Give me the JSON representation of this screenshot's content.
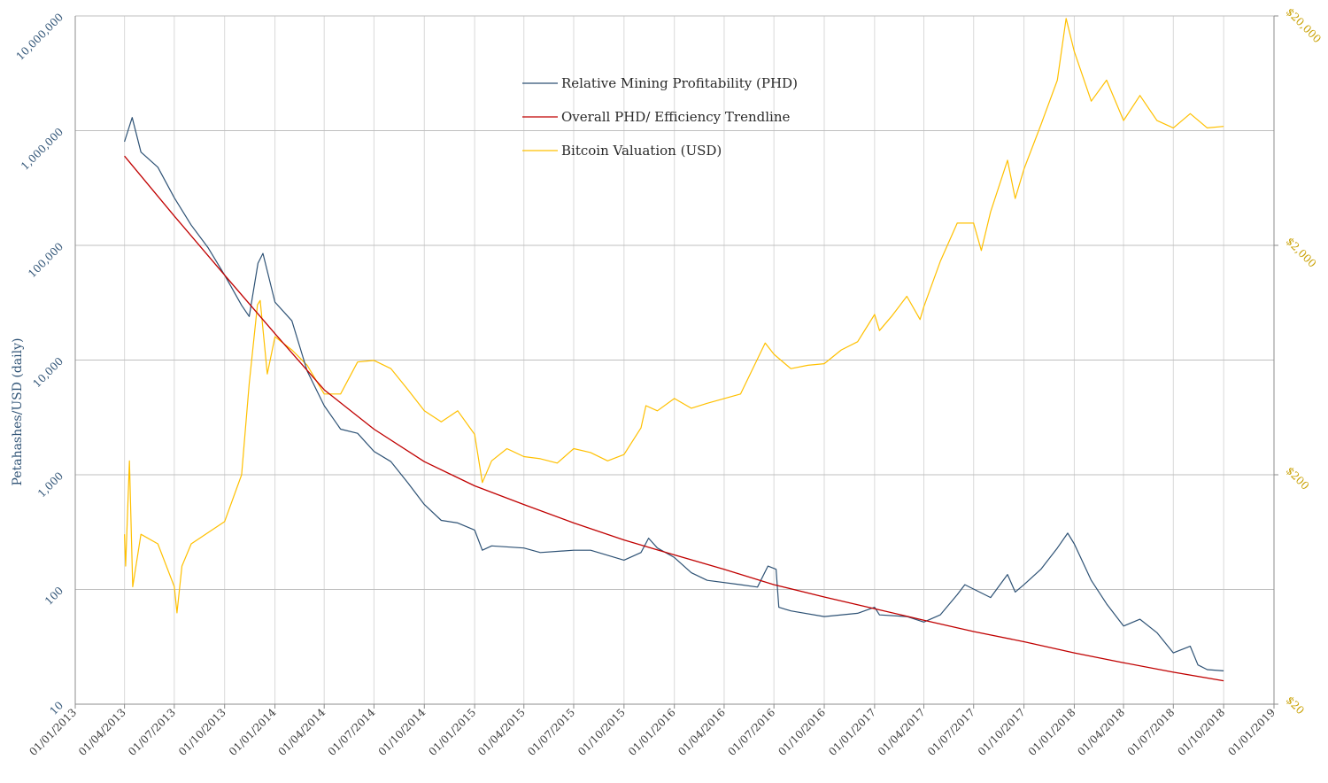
{
  "chart_data": {
    "type": "line",
    "ylabel": "Petahashes/USD (daily)",
    "x_range": [
      "01/01/2013",
      "01/01/2019"
    ],
    "x_ticks": [
      "01/01/2013",
      "01/04/2013",
      "01/07/2013",
      "01/10/2013",
      "01/01/2014",
      "01/04/2014",
      "01/07/2014",
      "01/10/2014",
      "01/01/2015",
      "01/04/2015",
      "01/07/2015",
      "01/10/2015",
      "01/01/2016",
      "01/04/2016",
      "01/07/2016",
      "01/10/2016",
      "01/01/2017",
      "01/04/2017",
      "01/07/2017",
      "01/10/2017",
      "01/01/2018",
      "01/04/2018",
      "01/07/2018",
      "01/10/2018",
      "01/01/2019"
    ],
    "y_left": {
      "scale": "log",
      "range": [
        10,
        10000000
      ],
      "ticks": [
        "10",
        "100",
        "1,000",
        "10,000",
        "100,000",
        "1,000,000",
        "10,000,000"
      ]
    },
    "y_right": {
      "scale": "log",
      "range": [
        20,
        20000
      ],
      "ticks": [
        "$20",
        "$200",
        "$2,000",
        "$20,000"
      ]
    },
    "grid": {
      "horizontal": true,
      "vertical": true
    },
    "legend_position": "top-center",
    "series": [
      {
        "name": "Relative Mining Profitability (PHD)",
        "axis": "left",
        "color": "#2e5275",
        "points": [
          [
            "01/04/2013",
            800000
          ],
          [
            "15/04/2013",
            1300000
          ],
          [
            "01/05/2013",
            650000
          ],
          [
            "01/06/2013",
            480000
          ],
          [
            "01/07/2013",
            260000
          ],
          [
            "01/08/2013",
            150000
          ],
          [
            "01/09/2013",
            95000
          ],
          [
            "01/10/2013",
            55000
          ],
          [
            "01/11/2013",
            30000
          ],
          [
            "15/11/2013",
            24000
          ],
          [
            "01/12/2013",
            70000
          ],
          [
            "10/12/2013",
            85000
          ],
          [
            "01/01/2014",
            32000
          ],
          [
            "01/02/2014",
            22000
          ],
          [
            "01/03/2014",
            8000
          ],
          [
            "01/04/2014",
            4000
          ],
          [
            "01/05/2014",
            2500
          ],
          [
            "01/06/2014",
            2300
          ],
          [
            "01/07/2014",
            1600
          ],
          [
            "01/08/2014",
            1300
          ],
          [
            "01/09/2014",
            850
          ],
          [
            "01/10/2014",
            550
          ],
          [
            "01/11/2014",
            400
          ],
          [
            "01/12/2014",
            380
          ],
          [
            "01/01/2015",
            330
          ],
          [
            "15/01/2015",
            220
          ],
          [
            "01/02/2015",
            240
          ],
          [
            "01/04/2015",
            230
          ],
          [
            "01/05/2015",
            210
          ],
          [
            "01/07/2015",
            220
          ],
          [
            "01/08/2015",
            220
          ],
          [
            "01/10/2015",
            180
          ],
          [
            "01/11/2015",
            210
          ],
          [
            "15/11/2015",
            280
          ],
          [
            "01/12/2015",
            230
          ],
          [
            "01/01/2016",
            190
          ],
          [
            "01/02/2016",
            140
          ],
          [
            "01/03/2016",
            120
          ],
          [
            "01/05/2016",
            110
          ],
          [
            "01/06/2016",
            105
          ],
          [
            "20/06/2016",
            160
          ],
          [
            "05/07/2016",
            150
          ],
          [
            "10/07/2016",
            70
          ],
          [
            "01/08/2016",
            65
          ],
          [
            "01/10/2016",
            58
          ],
          [
            "01/12/2016",
            62
          ],
          [
            "01/01/2017",
            70
          ],
          [
            "10/01/2017",
            60
          ],
          [
            "01/03/2017",
            58
          ],
          [
            "01/04/2017",
            52
          ],
          [
            "01/05/2017",
            60
          ],
          [
            "01/06/2017",
            90
          ],
          [
            "15/06/2017",
            110
          ],
          [
            "01/08/2017",
            85
          ],
          [
            "01/09/2017",
            135
          ],
          [
            "15/09/2017",
            95
          ],
          [
            "01/10/2017",
            110
          ],
          [
            "01/11/2017",
            150
          ],
          [
            "01/12/2017",
            230
          ],
          [
            "20/12/2017",
            310
          ],
          [
            "01/01/2018",
            250
          ],
          [
            "01/02/2018",
            120
          ],
          [
            "01/03/2018",
            75
          ],
          [
            "01/04/2018",
            48
          ],
          [
            "01/05/2018",
            55
          ],
          [
            "01/06/2018",
            42
          ],
          [
            "01/07/2018",
            28
          ],
          [
            "01/08/2018",
            32
          ],
          [
            "15/08/2018",
            22
          ],
          [
            "01/09/2018",
            20
          ],
          [
            "01/10/2018",
            19.5
          ]
        ]
      },
      {
        "name": "Overall PHD/ Efficiency Trendline",
        "axis": "left",
        "color": "#c00000",
        "points": [
          [
            "01/04/2013",
            600000
          ],
          [
            "01/07/2013",
            180000
          ],
          [
            "01/10/2013",
            55000
          ],
          [
            "01/01/2014",
            17000
          ],
          [
            "01/04/2014",
            5500
          ],
          [
            "01/07/2014",
            2500
          ],
          [
            "01/10/2014",
            1300
          ],
          [
            "01/01/2015",
            800
          ],
          [
            "01/04/2015",
            550
          ],
          [
            "01/07/2015",
            380
          ],
          [
            "01/10/2015",
            270
          ],
          [
            "01/01/2016",
            200
          ],
          [
            "01/04/2016",
            150
          ],
          [
            "01/07/2016",
            110
          ],
          [
            "01/10/2016",
            86
          ],
          [
            "01/01/2017",
            68
          ],
          [
            "01/04/2017",
            54
          ],
          [
            "01/07/2017",
            43
          ],
          [
            "01/10/2017",
            35
          ],
          [
            "01/01/2018",
            28
          ],
          [
            "01/04/2018",
            23
          ],
          [
            "01/07/2018",
            19
          ],
          [
            "01/10/2018",
            16
          ]
        ]
      },
      {
        "name": "Bitcoin Valuation (USD)",
        "axis": "right",
        "color": "#ffc000",
        "points": [
          [
            "01/04/2013",
            110
          ],
          [
            "03/04/2013",
            80
          ],
          [
            "10/04/2013",
            230
          ],
          [
            "16/04/2013",
            65
          ],
          [
            "01/05/2013",
            110
          ],
          [
            "01/06/2013",
            100
          ],
          [
            "01/07/2013",
            65
          ],
          [
            "06/07/2013",
            50
          ],
          [
            "15/07/2013",
            80
          ],
          [
            "01/08/2013",
            100
          ],
          [
            "01/10/2013",
            125
          ],
          [
            "01/11/2013",
            200
          ],
          [
            "15/11/2013",
            500
          ],
          [
            "30/11/2013",
            1100
          ],
          [
            "05/12/2013",
            1150
          ],
          [
            "18/12/2013",
            550
          ],
          [
            "01/01/2014",
            800
          ],
          [
            "01/02/2014",
            700
          ],
          [
            "01/03/2014",
            600
          ],
          [
            "01/04/2014",
            450
          ],
          [
            "01/05/2014",
            450
          ],
          [
            "01/06/2014",
            620
          ],
          [
            "01/07/2014",
            630
          ],
          [
            "01/08/2014",
            580
          ],
          [
            "01/09/2014",
            470
          ],
          [
            "01/10/2014",
            380
          ],
          [
            "01/11/2014",
            340
          ],
          [
            "01/12/2014",
            380
          ],
          [
            "01/01/2015",
            300
          ],
          [
            "15/01/2015",
            185
          ],
          [
            "01/02/2015",
            230
          ],
          [
            "01/03/2015",
            260
          ],
          [
            "01/04/2015",
            240
          ],
          [
            "01/05/2015",
            235
          ],
          [
            "01/06/2015",
            225
          ],
          [
            "01/07/2015",
            260
          ],
          [
            "01/08/2015",
            250
          ],
          [
            "01/09/2015",
            230
          ],
          [
            "01/10/2015",
            245
          ],
          [
            "01/11/2015",
            320
          ],
          [
            "10/11/2015",
            400
          ],
          [
            "01/12/2015",
            380
          ],
          [
            "01/01/2016",
            430
          ],
          [
            "01/02/2016",
            390
          ],
          [
            "01/03/2016",
            410
          ],
          [
            "01/05/2016",
            450
          ],
          [
            "15/06/2016",
            750
          ],
          [
            "01/07/2016",
            670
          ],
          [
            "01/08/2016",
            580
          ],
          [
            "01/09/2016",
            600
          ],
          [
            "01/10/2016",
            610
          ],
          [
            "01/11/2016",
            700
          ],
          [
            "01/12/2016",
            760
          ],
          [
            "01/01/2017",
            1000
          ],
          [
            "10/01/2017",
            850
          ],
          [
            "01/02/2017",
            980
          ],
          [
            "01/03/2017",
            1200
          ],
          [
            "25/03/2017",
            950
          ],
          [
            "01/04/2017",
            1080
          ],
          [
            "01/05/2017",
            1700
          ],
          [
            "01/06/2017",
            2500
          ],
          [
            "01/07/2017",
            2500
          ],
          [
            "15/07/2017",
            1900
          ],
          [
            "01/08/2017",
            2800
          ],
          [
            "01/09/2017",
            4700
          ],
          [
            "15/09/2017",
            3200
          ],
          [
            "01/10/2017",
            4300
          ],
          [
            "01/11/2017",
            6700
          ],
          [
            "01/12/2017",
            10500
          ],
          [
            "17/12/2017",
            19500
          ],
          [
            "01/01/2018",
            14000
          ],
          [
            "01/02/2018",
            8500
          ],
          [
            "01/03/2018",
            10500
          ],
          [
            "01/04/2018",
            7000
          ],
          [
            "01/05/2018",
            9000
          ],
          [
            "01/06/2018",
            7000
          ],
          [
            "01/07/2018",
            6500
          ],
          [
            "01/08/2018",
            7500
          ],
          [
            "01/09/2018",
            6500
          ],
          [
            "01/10/2018",
            6600
          ]
        ]
      }
    ]
  }
}
